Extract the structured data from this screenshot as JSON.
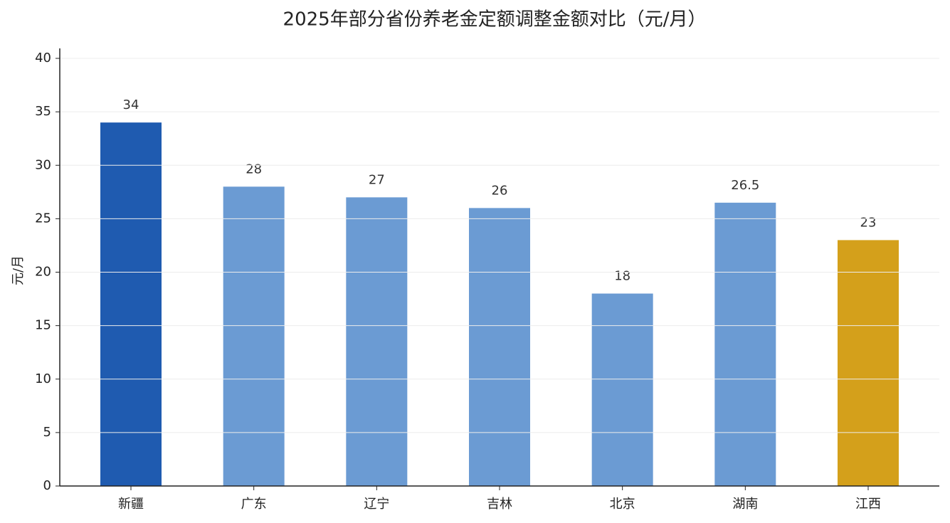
{
  "chart_data": {
    "type": "bar",
    "title": "2025年部分省份养老金定额调整金额对比（元/月）",
    "y_label": "元/月",
    "categories": [
      "新疆",
      "广东",
      "辽宁",
      "吉林",
      "北京",
      "湖南",
      "江西"
    ],
    "values": [
      34,
      28,
      27,
      26,
      18,
      26.5,
      23
    ],
    "colors": [
      "#1f5bb0",
      "#6b9bd3",
      "#6b9bd3",
      "#6b9bd3",
      "#6b9bd3",
      "#6b9bd3",
      "#d4a01b"
    ],
    "ylim": [
      0,
      40.8
    ],
    "yticks": [
      0,
      5,
      10,
      15,
      20,
      25,
      30,
      35,
      40
    ],
    "grid": true
  }
}
